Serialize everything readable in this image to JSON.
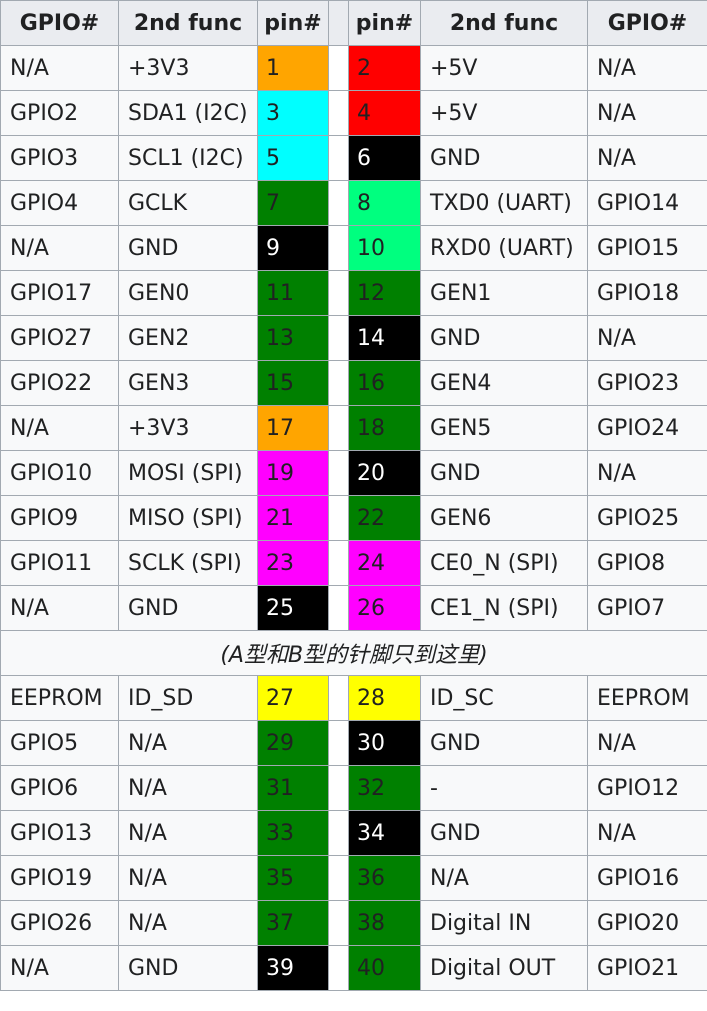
{
  "headers": {
    "left_gpio": "GPIO#",
    "left_func": "2nd func",
    "left_pin": "pin#",
    "right_pin": "pin#",
    "right_func": "2nd func",
    "right_gpio": "GPIO#"
  },
  "pin_colors": {
    "orange": "#ffa500",
    "red": "#ff0000",
    "cyan": "#00ffff",
    "black": "#000000",
    "green": "#008000",
    "spring_green": "#00ff7f",
    "magenta": "#ff00ff",
    "yellow": "#ffff00"
  },
  "rows_top": [
    {
      "lg": "N/A",
      "lf": "+3V3",
      "lp": "1",
      "lc": "orange",
      "rp": "2",
      "rc": "red",
      "rf": "+5V",
      "rg": "N/A"
    },
    {
      "lg": "GPIO2",
      "lf": "SDA1 (I2C)",
      "lp": "3",
      "lc": "cyan",
      "rp": "4",
      "rc": "red",
      "rf": "+5V",
      "rg": "N/A"
    },
    {
      "lg": "GPIO3",
      "lf": "SCL1 (I2C)",
      "lp": "5",
      "lc": "cyan",
      "rp": "6",
      "rc": "black",
      "rf": "GND",
      "rg": "N/A"
    },
    {
      "lg": "GPIO4",
      "lf": "GCLK",
      "lp": "7",
      "lc": "green",
      "rp": "8",
      "rc": "spring_green",
      "rf": "TXD0 (UART)",
      "rg": "GPIO14"
    },
    {
      "lg": "N/A",
      "lf": "GND",
      "lp": "9",
      "lc": "black",
      "rp": "10",
      "rc": "spring_green",
      "rf": "RXD0 (UART)",
      "rg": "GPIO15"
    },
    {
      "lg": "GPIO17",
      "lf": "GEN0",
      "lp": "11",
      "lc": "green",
      "rp": "12",
      "rc": "green",
      "rf": "GEN1",
      "rg": "GPIO18"
    },
    {
      "lg": "GPIO27",
      "lf": "GEN2",
      "lp": "13",
      "lc": "green",
      "rp": "14",
      "rc": "black",
      "rf": "GND",
      "rg": "N/A"
    },
    {
      "lg": "GPIO22",
      "lf": "GEN3",
      "lp": "15",
      "lc": "green",
      "rp": "16",
      "rc": "green",
      "rf": "GEN4",
      "rg": "GPIO23"
    },
    {
      "lg": "N/A",
      "lf": "+3V3",
      "lp": "17",
      "lc": "orange",
      "rp": "18",
      "rc": "green",
      "rf": "GEN5",
      "rg": "GPIO24"
    },
    {
      "lg": "GPIO10",
      "lf": "MOSI (SPI)",
      "lp": "19",
      "lc": "magenta",
      "rp": "20",
      "rc": "black",
      "rf": "GND",
      "rg": "N/A"
    },
    {
      "lg": "GPIO9",
      "lf": "MISO (SPI)",
      "lp": "21",
      "lc": "magenta",
      "rp": "22",
      "rc": "green",
      "rf": "GEN6",
      "rg": "GPIO25"
    },
    {
      "lg": "GPIO11",
      "lf": "SCLK (SPI)",
      "lp": "23",
      "lc": "magenta",
      "rp": "24",
      "rc": "magenta",
      "rf": "CE0_N (SPI)",
      "rg": "GPIO8"
    },
    {
      "lg": "N/A",
      "lf": "GND",
      "lp": "25",
      "lc": "black",
      "rp": "26",
      "rc": "magenta",
      "rf": "CE1_N (SPI)",
      "rg": "GPIO7"
    }
  ],
  "separator_note": "(A型和B型的针脚只到这里)",
  "rows_bottom": [
    {
      "lg": "EEPROM",
      "lf": "ID_SD",
      "lp": "27",
      "lc": "yellow",
      "rp": "28",
      "rc": "yellow",
      "rf": "ID_SC",
      "rg": "EEPROM"
    },
    {
      "lg": "GPIO5",
      "lf": "N/A",
      "lp": "29",
      "lc": "green",
      "rp": "30",
      "rc": "black",
      "rf": "GND",
      "rg": "N/A"
    },
    {
      "lg": "GPIO6",
      "lf": "N/A",
      "lp": "31",
      "lc": "green",
      "rp": "32",
      "rc": "green",
      "rf": "-",
      "rg": "GPIO12"
    },
    {
      "lg": "GPIO13",
      "lf": "N/A",
      "lp": "33",
      "lc": "green",
      "rp": "34",
      "rc": "black",
      "rf": "GND",
      "rg": "N/A"
    },
    {
      "lg": "GPIO19",
      "lf": "N/A",
      "lp": "35",
      "lc": "green",
      "rp": "36",
      "rc": "green",
      "rf": "N/A",
      "rg": "GPIO16"
    },
    {
      "lg": "GPIO26",
      "lf": "N/A",
      "lp": "37",
      "lc": "green",
      "rp": "38",
      "rc": "green",
      "rf": "Digital IN",
      "rg": "GPIO20"
    },
    {
      "lg": "N/A",
      "lf": "GND",
      "lp": "39",
      "lc": "black",
      "rp": "40",
      "rc": "green",
      "rf": "Digital OUT",
      "rg": "GPIO21"
    }
  ]
}
